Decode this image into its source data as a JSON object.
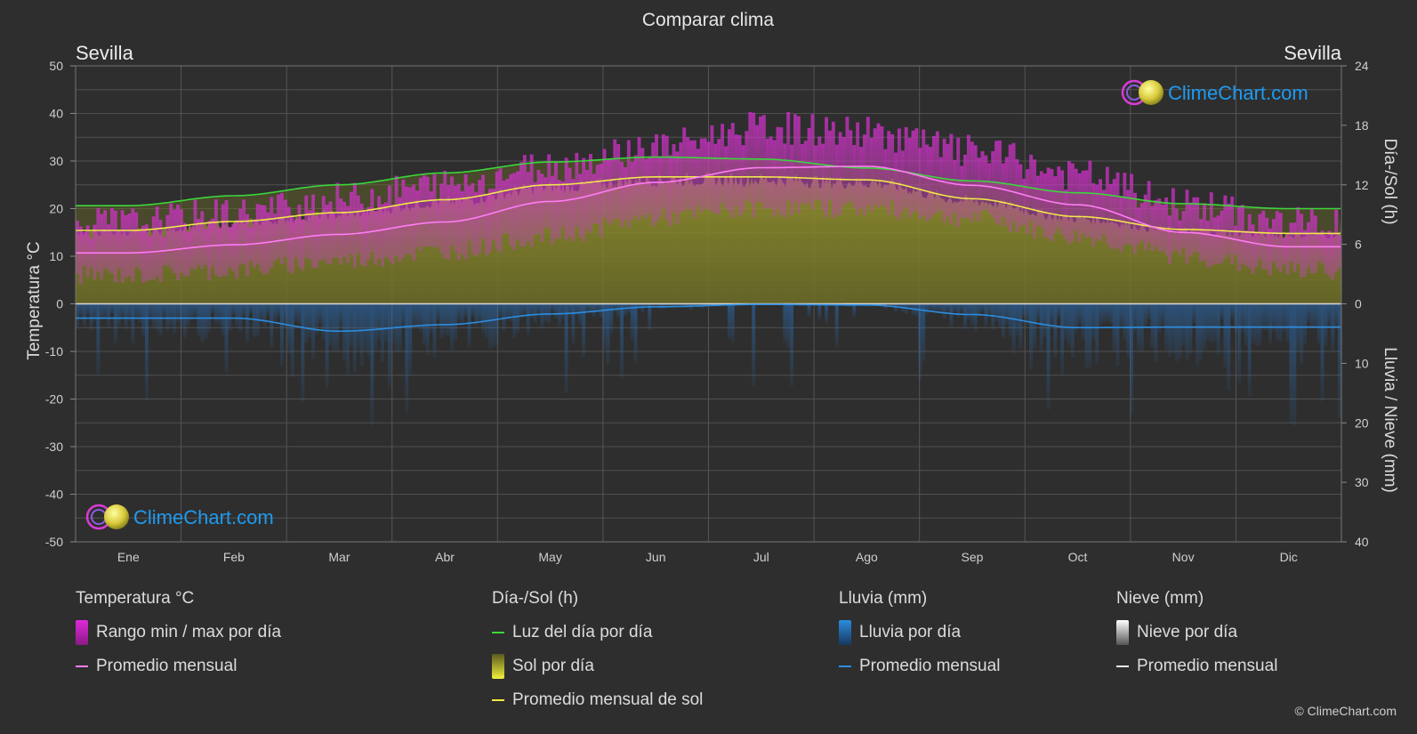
{
  "title": "Comparar clima",
  "location_left": "Sevilla",
  "location_right": "Sevilla",
  "watermark": "ClimeChart.com",
  "copyright": "© ClimeChart.com",
  "chart_data": {
    "type": "area",
    "categories": [
      "Ene",
      "Feb",
      "Mar",
      "Abr",
      "May",
      "Jun",
      "Jul",
      "Ago",
      "Sep",
      "Oct",
      "Nov",
      "Dic"
    ],
    "y_left": {
      "label": "Temperatura °C",
      "ylim": [
        -50,
        50
      ],
      "ticks": [
        50,
        40,
        30,
        20,
        10,
        0,
        -10,
        -20,
        -30,
        -40,
        -50
      ]
    },
    "y_right_top": {
      "label": "Día-/Sol (h)",
      "ylim": [
        0,
        24
      ],
      "ticks": [
        24,
        18,
        12,
        6,
        0
      ]
    },
    "y_right_bottom": {
      "label": "Lluvia / Nieve (mm)",
      "ylim": [
        0,
        40
      ],
      "ticks": [
        10,
        20,
        30,
        40
      ]
    },
    "grid": true,
    "series": [
      {
        "name": "Promedio mensual",
        "group": "Temperatura °C",
        "unit": "°C",
        "values": [
          10.7,
          12.4,
          14.6,
          17.2,
          21.5,
          25.5,
          28.6,
          28.9,
          24.9,
          20.8,
          15.0,
          12.0
        ]
      },
      {
        "name": "Luz del día por día",
        "group": "Día-/Sol (h)",
        "unit": "h",
        "values": [
          9.9,
          10.9,
          12.0,
          13.2,
          14.3,
          14.8,
          14.6,
          13.7,
          12.4,
          11.2,
          10.1,
          9.6
        ]
      },
      {
        "name": "Promedio mensual de sol",
        "group": "Día-/Sol (h)",
        "unit": "h",
        "values": [
          7.4,
          8.3,
          9.2,
          10.5,
          12.0,
          12.8,
          12.8,
          12.5,
          10.6,
          8.8,
          7.5,
          7.1
        ]
      },
      {
        "name": "Promedio mensual",
        "group": "Lluvia (mm)",
        "unit": "mm",
        "values": [
          2.4,
          2.4,
          4.6,
          3.5,
          1.7,
          0.5,
          0.1,
          0.2,
          1.8,
          4.0,
          3.9,
          3.9
        ]
      },
      {
        "name": "Rango min / max por día",
        "group": "Temperatura °C",
        "unit": "°C",
        "min": [
          6,
          7,
          9,
          11,
          14,
          18,
          20,
          20,
          18,
          14,
          10,
          7
        ],
        "max": [
          17,
          19,
          22,
          25,
          29,
          33,
          37,
          36,
          32,
          27,
          21,
          17
        ]
      }
    ]
  },
  "legend": {
    "temp": {
      "title": "Temperatura °C",
      "range": "Rango min / max por día",
      "avg": "Promedio mensual"
    },
    "sun": {
      "title": "Día-/Sol (h)",
      "daylight": "Luz del día por día",
      "sun": "Sol por día",
      "avg": "Promedio mensual de sol"
    },
    "rain": {
      "title": "Lluvia (mm)",
      "rain": "Lluvia por día",
      "avg": "Promedio mensual"
    },
    "snow": {
      "title": "Nieve (mm)",
      "snow": "Nieve por día",
      "avg": "Promedio mensual"
    }
  },
  "colors": {
    "background": "#2e2e2e",
    "temp_range": "#e02ad8",
    "temp_avg": "#ff7cf5",
    "daylight": "#3cd63c",
    "sun_fill": "#b8b83a",
    "sun_avg": "#f0e84a",
    "rain": "#2a6fb8",
    "rain_avg": "#2b8de0",
    "snow": "#dddddd",
    "watermark": "#1e9bf0"
  },
  "icons": {
    "logo": "climechart-logo-icon"
  }
}
